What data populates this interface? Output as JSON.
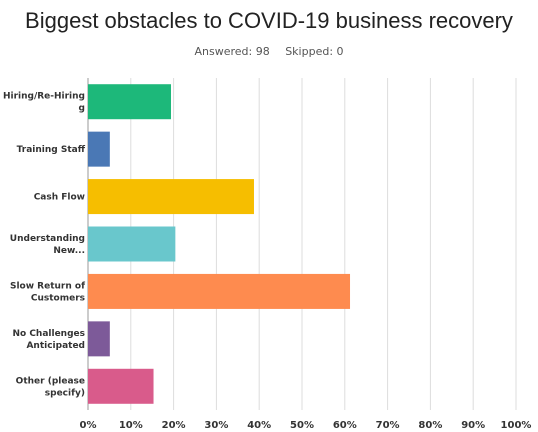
{
  "chart_data": {
    "type": "bar",
    "orientation": "horizontal",
    "title": "Biggest obstacles to COVID-19 business recovery",
    "answered_label": "Answered: 98",
    "skipped_label": "Skipped: 0",
    "categories": [
      [
        "Hiring/Re-Hiring",
        "g"
      ],
      [
        "Training Staff"
      ],
      [
        "Cash Flow"
      ],
      [
        "Understanding",
        "New..."
      ],
      [
        "Slow Return of",
        "Customers"
      ],
      [
        "No Challenges",
        "Anticipated"
      ],
      [
        "Other (please",
        "specify)"
      ]
    ],
    "values": [
      19.39,
      5.1,
      38.78,
      20.41,
      61.22,
      5.1,
      15.31
    ],
    "colors": [
      "#1db87a",
      "#4a78b5",
      "#f6be00",
      "#69c7cc",
      "#fe8b4f",
      "#7d5a99",
      "#d95b8b"
    ],
    "xlim": [
      0,
      100
    ],
    "x_ticks": [
      "0%",
      "10%",
      "20%",
      "30%",
      "40%",
      "50%",
      "60%",
      "70%",
      "80%",
      "90%",
      "100%"
    ],
    "grid": true
  }
}
